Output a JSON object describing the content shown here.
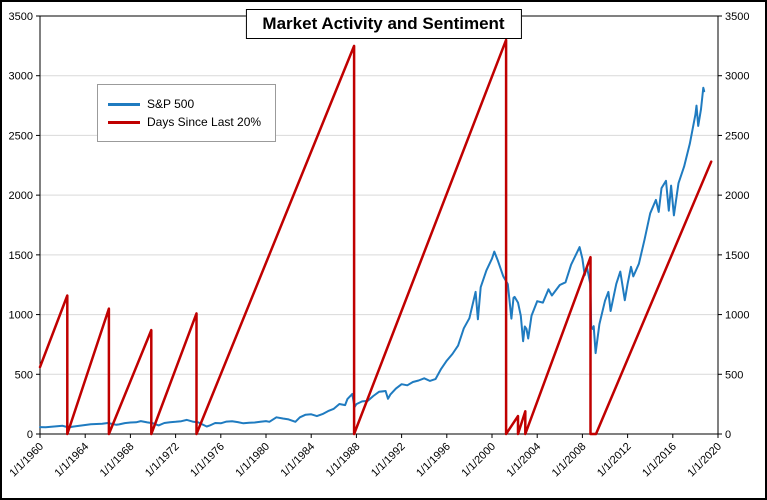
{
  "chart_data": {
    "type": "line",
    "title": "Market Activity and Sentiment",
    "grid": "horizontal",
    "colors": {
      "grid": "#d9d9d9",
      "axis": "#000000",
      "background": "#ffffff"
    },
    "x_axis": {
      "range": [
        1960,
        2020
      ],
      "ticks": [
        1960,
        1964,
        1968,
        1972,
        1976,
        1980,
        1984,
        1988,
        1992,
        1996,
        2000,
        2004,
        2008,
        2012,
        2016,
        2020
      ],
      "tick_labels": [
        "1/1/1960",
        "1/1/1964",
        "1/1/1968",
        "1/1/1972",
        "1/1/1976",
        "1/1/1980",
        "1/1/1984",
        "1/1/1988",
        "1/1/1992",
        "1/1/1996",
        "1/1/2000",
        "1/1/2004",
        "1/1/2008",
        "1/1/2012",
        "1/1/2016",
        "1/1/2020"
      ]
    },
    "y_axis": {
      "range": [
        0,
        3500
      ],
      "ticks": [
        0,
        500,
        1000,
        1500,
        2000,
        2500,
        3000,
        3500
      ],
      "sides": [
        "left",
        "right"
      ]
    },
    "legend": {
      "position": "top-left-inside"
    },
    "series": [
      {
        "name": "S&P 500",
        "color": "#1f7bc0",
        "width": 2,
        "points": [
          [
            1960.0,
            58
          ],
          [
            1960.5,
            56
          ],
          [
            1961.0,
            61
          ],
          [
            1961.5,
            65
          ],
          [
            1962.0,
            69
          ],
          [
            1962.5,
            55
          ],
          [
            1963.0,
            63
          ],
          [
            1963.5,
            69
          ],
          [
            1964.0,
            75
          ],
          [
            1964.5,
            81
          ],
          [
            1965.0,
            84
          ],
          [
            1965.5,
            85
          ],
          [
            1966.0,
            92
          ],
          [
            1966.75,
            77
          ],
          [
            1967.0,
            80
          ],
          [
            1967.5,
            91
          ],
          [
            1968.0,
            96
          ],
          [
            1968.5,
            98
          ],
          [
            1968.92,
            108
          ],
          [
            1969.5,
            97
          ],
          [
            1970.0,
            90
          ],
          [
            1970.5,
            72
          ],
          [
            1971.0,
            92
          ],
          [
            1971.5,
            99
          ],
          [
            1972.0,
            102
          ],
          [
            1972.5,
            107
          ],
          [
            1973.0,
            118
          ],
          [
            1973.5,
            104
          ],
          [
            1974.0,
            97
          ],
          [
            1974.75,
            63
          ],
          [
            1975.0,
            70
          ],
          [
            1975.5,
            92
          ],
          [
            1976.0,
            90
          ],
          [
            1976.5,
            104
          ],
          [
            1977.0,
            107
          ],
          [
            1977.5,
            100
          ],
          [
            1978.0,
            90
          ],
          [
            1978.5,
            95
          ],
          [
            1979.0,
            96
          ],
          [
            1979.5,
            102
          ],
          [
            1980.0,
            108
          ],
          [
            1980.3,
            102
          ],
          [
            1980.92,
            140
          ],
          [
            1981.5,
            130
          ],
          [
            1982.0,
            122
          ],
          [
            1982.6,
            102
          ],
          [
            1983.0,
            140
          ],
          [
            1983.5,
            162
          ],
          [
            1984.0,
            165
          ],
          [
            1984.5,
            150
          ],
          [
            1985.0,
            167
          ],
          [
            1985.5,
            192
          ],
          [
            1986.0,
            211
          ],
          [
            1986.5,
            251
          ],
          [
            1987.0,
            242
          ],
          [
            1987.2,
            292
          ],
          [
            1987.64,
            336
          ],
          [
            1987.83,
            225
          ],
          [
            1988.0,
            250
          ],
          [
            1988.5,
            273
          ],
          [
            1989.0,
            277
          ],
          [
            1989.5,
            318
          ],
          [
            1990.0,
            353
          ],
          [
            1990.58,
            360
          ],
          [
            1990.8,
            295
          ],
          [
            1991.0,
            330
          ],
          [
            1991.5,
            380
          ],
          [
            1992.0,
            417
          ],
          [
            1992.5,
            408
          ],
          [
            1993.0,
            435
          ],
          [
            1993.5,
            448
          ],
          [
            1994.0,
            466
          ],
          [
            1994.5,
            445
          ],
          [
            1995.0,
            460
          ],
          [
            1995.5,
            545
          ],
          [
            1996.0,
            615
          ],
          [
            1996.5,
            670
          ],
          [
            1997.0,
            740
          ],
          [
            1997.5,
            885
          ],
          [
            1998.0,
            970
          ],
          [
            1998.55,
            1190
          ],
          [
            1998.75,
            960
          ],
          [
            1999.0,
            1229
          ],
          [
            1999.5,
            1370
          ],
          [
            2000.0,
            1469
          ],
          [
            2000.2,
            1527
          ],
          [
            2000.5,
            1455
          ],
          [
            2001.0,
            1320
          ],
          [
            2001.4,
            1255
          ],
          [
            2001.72,
            966
          ],
          [
            2001.9,
            1140
          ],
          [
            2002.0,
            1148
          ],
          [
            2002.3,
            1100
          ],
          [
            2002.55,
            990
          ],
          [
            2002.75,
            777
          ],
          [
            2002.9,
            900
          ],
          [
            2003.05,
            880
          ],
          [
            2003.2,
            800
          ],
          [
            2003.5,
            990
          ],
          [
            2004.0,
            1112
          ],
          [
            2004.5,
            1100
          ],
          [
            2005.0,
            1212
          ],
          [
            2005.3,
            1160
          ],
          [
            2006.0,
            1248
          ],
          [
            2006.5,
            1270
          ],
          [
            2007.0,
            1418
          ],
          [
            2007.75,
            1565
          ],
          [
            2008.0,
            1468
          ],
          [
            2008.2,
            1330
          ],
          [
            2008.4,
            1400
          ],
          [
            2008.7,
            1255
          ],
          [
            2008.78,
            900
          ],
          [
            2008.9,
            880
          ],
          [
            2009.0,
            903
          ],
          [
            2009.17,
            677
          ],
          [
            2009.5,
            920
          ],
          [
            2010.0,
            1115
          ],
          [
            2010.3,
            1190
          ],
          [
            2010.5,
            1030
          ],
          [
            2011.0,
            1258
          ],
          [
            2011.35,
            1360
          ],
          [
            2011.75,
            1120
          ],
          [
            2012.0,
            1258
          ],
          [
            2012.3,
            1400
          ],
          [
            2012.5,
            1320
          ],
          [
            2013.0,
            1426
          ],
          [
            2013.5,
            1630
          ],
          [
            2014.0,
            1848
          ],
          [
            2014.5,
            1960
          ],
          [
            2014.75,
            1860
          ],
          [
            2015.0,
            2059
          ],
          [
            2015.4,
            2120
          ],
          [
            2015.65,
            1870
          ],
          [
            2015.85,
            2080
          ],
          [
            2016.1,
            1830
          ],
          [
            2016.5,
            2100
          ],
          [
            2017.0,
            2239
          ],
          [
            2017.5,
            2430
          ],
          [
            2018.0,
            2674
          ],
          [
            2018.1,
            2750
          ],
          [
            2018.25,
            2580
          ],
          [
            2018.5,
            2720
          ],
          [
            2018.7,
            2900
          ],
          [
            2018.78,
            2870
          ]
        ]
      },
      {
        "name": "Days Since Last 20%",
        "color": "#c00000",
        "width": 2.5,
        "points": [
          [
            1960.0,
            560
          ],
          [
            1962.42,
            1160
          ],
          [
            1962.42,
            0
          ],
          [
            1966.1,
            1050
          ],
          [
            1966.1,
            0
          ],
          [
            1969.85,
            870
          ],
          [
            1969.85,
            0
          ],
          [
            1973.85,
            1010
          ],
          [
            1973.85,
            0
          ],
          [
            1987.8,
            3250
          ],
          [
            1987.8,
            0
          ],
          [
            2001.25,
            3300
          ],
          [
            2001.25,
            0
          ],
          [
            2002.3,
            150
          ],
          [
            2002.3,
            0
          ],
          [
            2002.95,
            190
          ],
          [
            2002.95,
            0
          ],
          [
            2008.72,
            1480
          ],
          [
            2008.72,
            0
          ],
          [
            2009.2,
            0
          ],
          [
            2019.4,
            2280
          ]
        ]
      }
    ]
  }
}
